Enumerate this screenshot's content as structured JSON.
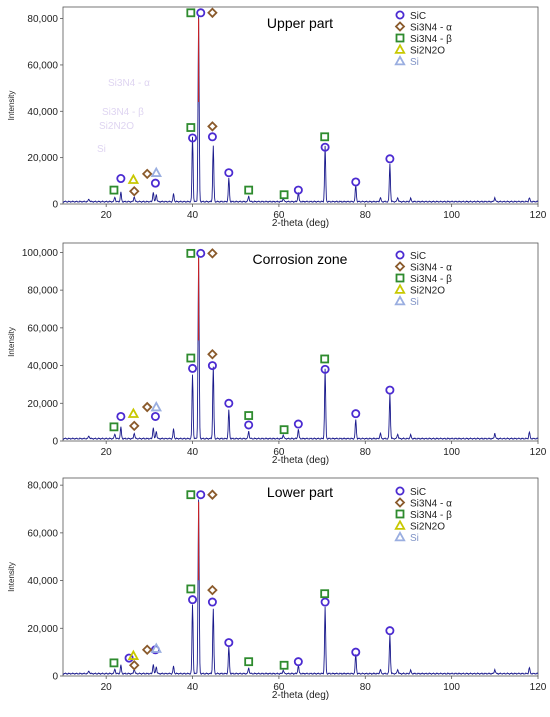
{
  "marker_colors": {
    "SiC": "#4b2bd1",
    "Si3N4_alpha": "#8a5a2b",
    "Si3N4_beta": "#2e8b2e",
    "Si2N2O": "#c8c800",
    "Si": "#9aaee0"
  },
  "trace_color": "#1a1a8c",
  "peak_color": "#cc2222",
  "chart_data": [
    {
      "type": "line",
      "title": "Upper part",
      "xlabel": "2-theta (deg)",
      "ylabel": "Intensity",
      "xlim": [
        10,
        120
      ],
      "ylim": [
        0,
        85000
      ],
      "xticks": [
        "20",
        "40",
        "60",
        "80",
        "100",
        "120"
      ],
      "yticks": [
        "0",
        "20,000",
        "40,000",
        "60,000",
        "80,000"
      ],
      "legend": [
        "SiC",
        "Si3N4 - α",
        "Si3N4 - β",
        "Si2N2O",
        "Si"
      ],
      "legend_position": "top-right",
      "faint_labels": [
        "Si3N4 - α",
        "Si3N4 - β",
        "Si2N2O",
        "Si"
      ],
      "peaks": [
        {
          "x": 16.0,
          "y": 1200
        },
        {
          "x": 22.0,
          "y": 2000
        },
        {
          "x": 23.4,
          "y": 4000
        },
        {
          "x": 26.5,
          "y": 2200
        },
        {
          "x": 30.9,
          "y": 4200
        },
        {
          "x": 31.6,
          "y": 3200
        },
        {
          "x": 35.6,
          "y": 3300
        },
        {
          "x": 40.0,
          "y": 28000
        },
        {
          "x": 41.4,
          "y": 80000
        },
        {
          "x": 44.8,
          "y": 24000
        },
        {
          "x": 48.4,
          "y": 10000
        },
        {
          "x": 53.0,
          "y": 2500
        },
        {
          "x": 61.0,
          "y": 1500
        },
        {
          "x": 64.5,
          "y": 4000
        },
        {
          "x": 70.7,
          "y": 24000
        },
        {
          "x": 77.8,
          "y": 7000
        },
        {
          "x": 83.5,
          "y": 1800
        },
        {
          "x": 85.7,
          "y": 16500
        },
        {
          "x": 87.5,
          "y": 1800
        },
        {
          "x": 90.5,
          "y": 1400
        },
        {
          "x": 110.0,
          "y": 1800
        },
        {
          "x": 118.0,
          "y": 1600
        }
      ],
      "markers": [
        {
          "type": "SiC",
          "x": 23.4,
          "y": 11000
        },
        {
          "type": "SiC",
          "x": 31.4,
          "y": 9000
        },
        {
          "type": "SiC",
          "x": 40.0,
          "y": 28500
        },
        {
          "type": "SiC",
          "x": 41.9,
          "y": 82500
        },
        {
          "type": "SiC",
          "x": 44.6,
          "y": 29000
        },
        {
          "type": "SiC",
          "x": 48.4,
          "y": 13500
        },
        {
          "type": "SiC",
          "x": 64.5,
          "y": 6000
        },
        {
          "type": "SiC",
          "x": 70.7,
          "y": 24500
        },
        {
          "type": "SiC",
          "x": 77.8,
          "y": 9500
        },
        {
          "type": "SiC",
          "x": 85.7,
          "y": 19500
        },
        {
          "type": "Si3N4_alpha",
          "x": 26.5,
          "y": 5500
        },
        {
          "type": "Si3N4_alpha",
          "x": 29.5,
          "y": 13000
        },
        {
          "type": "Si3N4_alpha",
          "x": 44.6,
          "y": 33500
        },
        {
          "type": "Si3N4_alpha",
          "x": 44.6,
          "y": 82500
        },
        {
          "type": "Si3N4_beta",
          "x": 21.8,
          "y": 6000
        },
        {
          "type": "Si3N4_beta",
          "x": 39.6,
          "y": 33000
        },
        {
          "type": "Si3N4_beta",
          "x": 39.6,
          "y": 82500
        },
        {
          "type": "Si3N4_beta",
          "x": 53.0,
          "y": 6000
        },
        {
          "type": "Si3N4_beta",
          "x": 61.2,
          "y": 4000
        },
        {
          "type": "Si3N4_beta",
          "x": 70.6,
          "y": 29000
        },
        {
          "type": "Si2N2O",
          "x": 26.3,
          "y": 10500
        },
        {
          "type": "Si",
          "x": 31.6,
          "y": 13500
        }
      ]
    },
    {
      "type": "line",
      "title": "Corrosion zone",
      "xlabel": "2-theta (deg)",
      "ylabel": "Intensity",
      "xlim": [
        10,
        120
      ],
      "ylim": [
        0,
        105000
      ],
      "xticks": [
        "20",
        "40",
        "60",
        "80",
        "100",
        "120"
      ],
      "yticks": [
        "0",
        "20,000",
        "40,000",
        "60,000",
        "80,000",
        "100,000"
      ],
      "legend": [
        "SiC",
        "Si3N4 - α",
        "Si3N4 - β",
        "Si2N2O",
        "Si"
      ],
      "legend_position": "top-right",
      "faint_labels": [],
      "peaks": [
        {
          "x": 16.0,
          "y": 1500
        },
        {
          "x": 22.0,
          "y": 2500
        },
        {
          "x": 23.4,
          "y": 6000
        },
        {
          "x": 26.5,
          "y": 3000
        },
        {
          "x": 30.9,
          "y": 6000
        },
        {
          "x": 31.6,
          "y": 4000
        },
        {
          "x": 35.6,
          "y": 5000
        },
        {
          "x": 40.0,
          "y": 34000
        },
        {
          "x": 41.4,
          "y": 97000
        },
        {
          "x": 44.8,
          "y": 38000
        },
        {
          "x": 48.4,
          "y": 15000
        },
        {
          "x": 53.0,
          "y": 4000
        },
        {
          "x": 61.0,
          "y": 2000
        },
        {
          "x": 64.5,
          "y": 5000
        },
        {
          "x": 70.7,
          "y": 37000
        },
        {
          "x": 77.8,
          "y": 10000
        },
        {
          "x": 83.5,
          "y": 3000
        },
        {
          "x": 85.7,
          "y": 24000
        },
        {
          "x": 87.5,
          "y": 2500
        },
        {
          "x": 90.5,
          "y": 2000
        },
        {
          "x": 110.0,
          "y": 3000
        },
        {
          "x": 118.0,
          "y": 3500
        }
      ],
      "markers": [
        {
          "type": "SiC",
          "x": 23.4,
          "y": 13000
        },
        {
          "type": "SiC",
          "x": 31.4,
          "y": 13000
        },
        {
          "type": "SiC",
          "x": 40.0,
          "y": 38500
        },
        {
          "type": "SiC",
          "x": 41.9,
          "y": 99500
        },
        {
          "type": "SiC",
          "x": 44.6,
          "y": 40000
        },
        {
          "type": "SiC",
          "x": 48.4,
          "y": 20000
        },
        {
          "type": "SiC",
          "x": 53.0,
          "y": 8500
        },
        {
          "type": "SiC",
          "x": 64.5,
          "y": 9000
        },
        {
          "type": "SiC",
          "x": 70.7,
          "y": 38000
        },
        {
          "type": "SiC",
          "x": 77.8,
          "y": 14500
        },
        {
          "type": "SiC",
          "x": 85.7,
          "y": 27000
        },
        {
          "type": "Si3N4_alpha",
          "x": 26.5,
          "y": 8000
        },
        {
          "type": "Si3N4_alpha",
          "x": 29.5,
          "y": 18000
        },
        {
          "type": "Si3N4_alpha",
          "x": 44.6,
          "y": 46000
        },
        {
          "type": "Si3N4_alpha",
          "x": 44.6,
          "y": 99500
        },
        {
          "type": "Si3N4_beta",
          "x": 21.8,
          "y": 7500
        },
        {
          "type": "Si3N4_beta",
          "x": 39.6,
          "y": 44000
        },
        {
          "type": "Si3N4_beta",
          "x": 39.6,
          "y": 99500
        },
        {
          "type": "Si3N4_beta",
          "x": 53.0,
          "y": 13500
        },
        {
          "type": "Si3N4_beta",
          "x": 61.2,
          "y": 6000
        },
        {
          "type": "Si3N4_beta",
          "x": 70.6,
          "y": 43500
        },
        {
          "type": "Si2N2O",
          "x": 26.3,
          "y": 14500
        },
        {
          "type": "Si",
          "x": 31.6,
          "y": 18000
        }
      ]
    },
    {
      "type": "line",
      "title": "Lower part",
      "xlabel": "2-theta (deg)",
      "ylabel": "Intensity",
      "xlim": [
        10,
        120
      ],
      "ylim": [
        0,
        83000
      ],
      "xticks": [
        "20",
        "40",
        "60",
        "80",
        "100",
        "120"
      ],
      "yticks": [
        "0",
        "20,000",
        "40,000",
        "60,000",
        "80,000"
      ],
      "legend": [
        "SiC",
        "Si3N4 - α",
        "Si3N4 - β",
        "Si2N2O",
        "Si"
      ],
      "legend_position": "top-right",
      "faint_labels": [],
      "peaks": [
        {
          "x": 16.0,
          "y": 1200
        },
        {
          "x": 22.0,
          "y": 2000
        },
        {
          "x": 23.4,
          "y": 3500
        },
        {
          "x": 26.5,
          "y": 2000
        },
        {
          "x": 30.9,
          "y": 4000
        },
        {
          "x": 31.6,
          "y": 3000
        },
        {
          "x": 35.6,
          "y": 3000
        },
        {
          "x": 40.0,
          "y": 29000
        },
        {
          "x": 41.4,
          "y": 73000
        },
        {
          "x": 44.8,
          "y": 27000
        },
        {
          "x": 48.4,
          "y": 11000
        },
        {
          "x": 53.0,
          "y": 2500
        },
        {
          "x": 61.0,
          "y": 1500
        },
        {
          "x": 64.5,
          "y": 3500
        },
        {
          "x": 70.7,
          "y": 28000
        },
        {
          "x": 77.8,
          "y": 8000
        },
        {
          "x": 83.5,
          "y": 1800
        },
        {
          "x": 85.7,
          "y": 16500
        },
        {
          "x": 87.5,
          "y": 1800
        },
        {
          "x": 90.5,
          "y": 1400
        },
        {
          "x": 110.0,
          "y": 1800
        },
        {
          "x": 118.0,
          "y": 2500
        }
      ],
      "markers": [
        {
          "type": "SiC",
          "x": 25.3,
          "y": 7500
        },
        {
          "type": "SiC",
          "x": 31.4,
          "y": 11000
        },
        {
          "type": "SiC",
          "x": 40.0,
          "y": 32000
        },
        {
          "type": "SiC",
          "x": 41.9,
          "y": 76000
        },
        {
          "type": "SiC",
          "x": 44.6,
          "y": 31000
        },
        {
          "type": "SiC",
          "x": 48.4,
          "y": 14000
        },
        {
          "type": "SiC",
          "x": 64.5,
          "y": 6000
        },
        {
          "type": "SiC",
          "x": 70.7,
          "y": 31000
        },
        {
          "type": "SiC",
          "x": 77.8,
          "y": 10000
        },
        {
          "type": "SiC",
          "x": 85.7,
          "y": 19000
        },
        {
          "type": "Si3N4_alpha",
          "x": 26.5,
          "y": 4500
        },
        {
          "type": "Si3N4_alpha",
          "x": 29.5,
          "y": 11000
        },
        {
          "type": "Si3N4_alpha",
          "x": 44.6,
          "y": 36000
        },
        {
          "type": "Si3N4_alpha",
          "x": 44.6,
          "y": 76000
        },
        {
          "type": "Si3N4_beta",
          "x": 21.8,
          "y": 5500
        },
        {
          "type": "Si3N4_beta",
          "x": 39.6,
          "y": 36500
        },
        {
          "type": "Si3N4_beta",
          "x": 39.6,
          "y": 76000
        },
        {
          "type": "Si3N4_beta",
          "x": 53.0,
          "y": 6000
        },
        {
          "type": "Si3N4_beta",
          "x": 61.2,
          "y": 4500
        },
        {
          "type": "Si3N4_beta",
          "x": 70.6,
          "y": 34500
        },
        {
          "type": "Si2N2O",
          "x": 26.3,
          "y": 8500
        },
        {
          "type": "Si",
          "x": 31.6,
          "y": 11500
        }
      ]
    }
  ]
}
